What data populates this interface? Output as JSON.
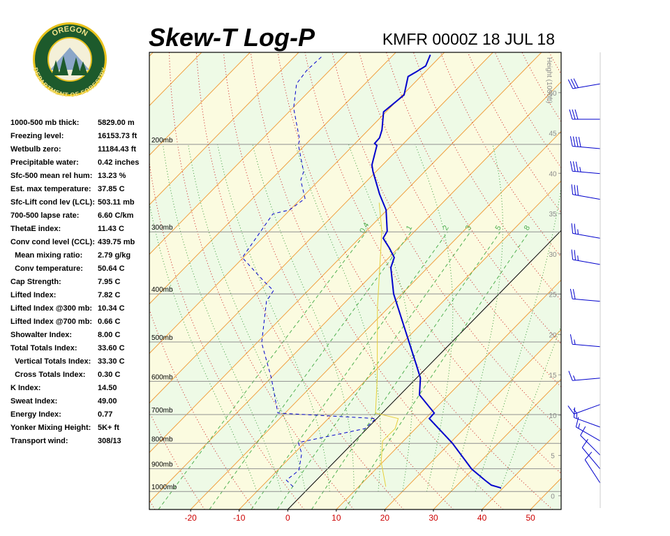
{
  "logo": {
    "top": "OREGON",
    "bottom": "DEPARTMENT OF FORESTRY"
  },
  "indices": [
    [
      "1000-500 mb thick:",
      "5829.00 m"
    ],
    [
      "Freezing level:",
      "16153.73 ft"
    ],
    [
      "Wetbulb zero:",
      "11184.43 ft"
    ],
    [
      "Precipitable water:",
      "0.42 inches"
    ],
    [
      "Sfc-500 mean rel hum:",
      "13.23 %"
    ],
    [
      "Est. max temperature:",
      "37.85 C"
    ],
    [
      "Sfc-Lift cond lev (LCL):",
      "503.11 mb"
    ],
    [
      "700-500 lapse rate:",
      "6.60 C/km"
    ],
    [
      "ThetaE index:",
      "11.43 C"
    ],
    [
      "Conv cond level (CCL):",
      "439.75 mb"
    ],
    [
      "  Mean mixing ratio:",
      "2.79 g/kg"
    ],
    [
      "  Conv temperature:",
      "50.64 C"
    ],
    [
      "Cap Strength:",
      "7.95 C"
    ],
    [
      "Lifted Index:",
      "7.82 C"
    ],
    [
      "Lifted Index @300 mb:",
      "10.34 C"
    ],
    [
      "Lifted Index @700 mb:",
      "0.66 C"
    ],
    [
      "Showalter Index:",
      "8.00 C"
    ],
    [
      "Total Totals Index:",
      "33.60 C"
    ],
    [
      "  Vertical Totals Index:",
      "33.30 C"
    ],
    [
      "  Cross Totals Index:",
      "0.30 C"
    ],
    [
      "K Index:",
      "14.50"
    ],
    [
      "Sweat Index:",
      "49.00"
    ],
    [
      "Energy Index:",
      "0.77"
    ],
    [
      "Yonker Mixing Height:",
      "5K+ ft"
    ],
    [
      "Transport wind:",
      "308/13"
    ]
  ],
  "chart_data": {
    "type": "skewt",
    "title": "Skew-T Log-P",
    "subtitle": "KMFR 0000Z 18 JUL 18",
    "xlim": [
      -28.5,
      56.3
    ],
    "xticks": [
      -20,
      -10,
      0,
      10,
      20,
      30,
      40,
      50
    ],
    "ylim": [
      1087,
      130.5
    ],
    "log_y": true,
    "yticks": [
      {
        "value": 1000,
        "label": "1000mb"
      },
      {
        "value": 900,
        "label": "900mb"
      },
      {
        "value": 800,
        "label": "800mb"
      },
      {
        "value": 700,
        "label": "700mb"
      },
      {
        "value": 600,
        "label": "600mb"
      },
      {
        "value": 500,
        "label": "500mb"
      },
      {
        "value": 400,
        "label": "400mb"
      },
      {
        "value": 300,
        "label": "300mb"
      },
      {
        "value": 200,
        "label": "200mb"
      }
    ],
    "y2label": "Height (1000ft)",
    "y2lim": [
      -1.7,
      55
    ],
    "y2ticks": [
      0,
      5,
      10,
      15,
      20,
      25,
      30,
      35,
      40,
      45,
      50
    ],
    "mixing_ratio_lines": [
      0.4,
      1,
      2,
      3,
      5,
      8
    ],
    "series": [
      {
        "color": "#0000cc",
        "line_style": "solid",
        "values": [
          984,
          971,
          949,
          901,
          799,
          713,
          695,
          639,
          591,
          554,
          400,
          354,
          338,
          324,
          309,
          299,
          271,
          252,
          227,
          220,
          201,
          199,
          194,
          187,
          172,
          159,
          146,
          143,
          139,
          132
        ],
        "x": [
          39.6,
          37.0,
          34.7,
          29.7,
          20.5,
          10.8,
          10.7,
          4.0,
          0.8,
          -2.9,
          -21.7,
          -27.6,
          -28.9,
          -31.7,
          -35.1,
          -35.7,
          -40.2,
          -44.7,
          -50.6,
          -52.2,
          -55.1,
          -56.0,
          -56.1,
          -57.2,
          -60.5,
          -59.7,
          -62.6,
          -61.9,
          -61.1,
          -62.4
        ]
      },
      {
        "color": "#0000cc",
        "line_style": "dashed",
        "values": [
          978,
          949,
          907,
          839,
          797,
          747,
          713,
          695,
          591,
          502,
          414,
          394,
          378,
          338,
          297,
          276,
          271,
          257,
          236,
          227,
          200,
          196,
          169,
          151,
          142,
          133
        ],
        "x": [
          -3.5,
          -6.2,
          -5.6,
          -8.4,
          -11.3,
          -0.4,
          -0.2,
          -21.5,
          -29.9,
          -39.0,
          -46.4,
          -47.1,
          -50.8,
          -60.2,
          -61.8,
          -62.7,
          -60.1,
          -59.2,
          -63.8,
          -64.9,
          -71.5,
          -72.1,
          -79.8,
          -84.1,
          -84.7,
          -84.4
        ]
      },
      {
        "color": "#e6cf3a",
        "line_style": "solid",
        "values": [
          978,
          873,
          791,
          747,
          713,
          695,
          591,
          427,
          299,
          262
        ],
        "x": [
          15.6,
          9.7,
          5.7,
          5.8,
          4.4,
          -1.4,
          -8.1,
          -22.2,
          -36.8,
          -43.1
        ]
      }
    ],
    "winds": {
      "color": "#0000cc",
      "pressure": [
        962,
        901,
        845,
        791,
        742,
        668,
        591,
        511,
        414,
        349,
        309,
        258,
        229,
        204,
        178,
        151
      ],
      "direction": [
        327,
        320,
        315,
        300,
        290,
        250,
        265,
        275,
        275,
        280,
        280,
        280,
        275,
        275,
        270,
        260
      ],
      "speed": [
        10,
        10,
        10,
        15,
        15,
        15,
        15,
        15,
        20,
        25,
        25,
        30,
        35,
        40,
        30,
        30
      ]
    }
  }
}
